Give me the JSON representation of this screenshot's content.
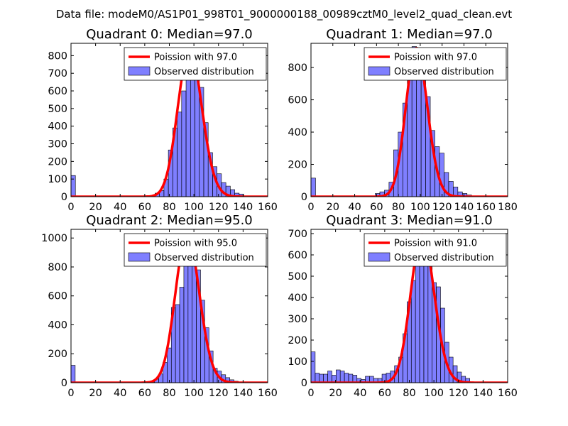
{
  "figure_title": "Data file: modeM0/AS1P01_998T01_9000000188_00989cztM0_level2_quad_clean.evt",
  "colors": {
    "bar_fill": "rgba(0,0,255,0.5)",
    "fit_line": "#ff0000"
  },
  "chart_data": [
    {
      "type": "bar",
      "title": "Quadrant 0: Median=97.0",
      "legend": {
        "fit": "Poission with 97.0",
        "observed": "Observed distribution"
      },
      "xlim": [
        0,
        160
      ],
      "ylim": [
        0,
        870
      ],
      "xticks": [
        0,
        20,
        40,
        60,
        80,
        100,
        120,
        140,
        160
      ],
      "yticks": [
        0,
        100,
        200,
        300,
        400,
        500,
        600,
        700,
        800
      ],
      "bin_width": 3.6,
      "bars": [
        [
          0,
          120
        ],
        [
          64.8,
          5
        ],
        [
          68.4,
          20
        ],
        [
          72,
          35
        ],
        [
          75.6,
          100
        ],
        [
          79.2,
          265
        ],
        [
          82.8,
          390
        ],
        [
          86.4,
          480
        ],
        [
          90,
          600
        ],
        [
          93.6,
          780
        ],
        [
          97.2,
          830
        ],
        [
          100.8,
          700
        ],
        [
          104.4,
          620
        ],
        [
          108,
          420
        ],
        [
          111.6,
          250
        ],
        [
          115.2,
          170
        ],
        [
          118.8,
          130
        ],
        [
          122.4,
          80
        ],
        [
          126,
          60
        ],
        [
          129.6,
          40
        ],
        [
          133.2,
          20
        ],
        [
          136.8,
          15
        ]
      ],
      "poisson_lambda": 97,
      "poisson_scale": 832
    },
    {
      "type": "bar",
      "title": "Quadrant 1: Median=97.0",
      "legend": {
        "fit": "Poission with 97.0",
        "observed": "Observed distribution"
      },
      "xlim": [
        0,
        180
      ],
      "ylim": [
        0,
        950
      ],
      "xticks": [
        0,
        20,
        40,
        60,
        80,
        100,
        120,
        140,
        160,
        180
      ],
      "yticks": [
        0,
        200,
        400,
        600,
        800
      ],
      "bin_width": 4.2,
      "bars": [
        [
          0,
          115
        ],
        [
          50.4,
          5
        ],
        [
          58.8,
          20
        ],
        [
          63,
          30
        ],
        [
          67.2,
          40
        ],
        [
          71.4,
          90
        ],
        [
          75.6,
          290
        ],
        [
          79.8,
          400
        ],
        [
          84,
          580
        ],
        [
          88.2,
          740
        ],
        [
          92.4,
          930
        ],
        [
          96.6,
          910
        ],
        [
          100.8,
          790
        ],
        [
          105,
          620
        ],
        [
          109.2,
          410
        ],
        [
          113.4,
          310
        ],
        [
          117.6,
          270
        ],
        [
          121.8,
          150
        ],
        [
          126,
          95
        ],
        [
          130.2,
          60
        ],
        [
          134.4,
          30
        ],
        [
          138.6,
          20
        ],
        [
          142.8,
          10
        ]
      ],
      "poisson_lambda": 97,
      "poisson_scale": 920
    },
    {
      "type": "bar",
      "title": "Quadrant 2: Median=95.0",
      "legend": {
        "fit": "Poission with 95.0",
        "observed": "Observed distribution"
      },
      "xlim": [
        0,
        160
      ],
      "ylim": [
        0,
        1060
      ],
      "xticks": [
        0,
        20,
        40,
        60,
        80,
        100,
        120,
        140,
        160
      ],
      "yticks": [
        0,
        200,
        400,
        600,
        800,
        1000
      ],
      "bin_width": 3.4,
      "bars": [
        [
          0,
          120
        ],
        [
          64.6,
          5
        ],
        [
          68,
          25
        ],
        [
          71.4,
          60
        ],
        [
          74.8,
          140
        ],
        [
          78.2,
          240
        ],
        [
          81.6,
          520
        ],
        [
          85,
          540
        ],
        [
          88.4,
          660
        ],
        [
          91.8,
          860
        ],
        [
          95.2,
          1000
        ],
        [
          98.6,
          900
        ],
        [
          102,
          780
        ],
        [
          105.4,
          570
        ],
        [
          108.8,
          380
        ],
        [
          112.2,
          220
        ],
        [
          115.6,
          100
        ],
        [
          119,
          80
        ],
        [
          122.4,
          55
        ],
        [
          125.8,
          35
        ],
        [
          129.2,
          20
        ],
        [
          132.6,
          10
        ],
        [
          136,
          5
        ]
      ],
      "poisson_lambda": 95,
      "poisson_scale": 1020
    },
    {
      "type": "bar",
      "title": "Quadrant 3: Median=91.0",
      "legend": {
        "fit": "Poission with 91.0",
        "observed": "Observed distribution"
      },
      "xlim": [
        0,
        160
      ],
      "ylim": [
        0,
        720
      ],
      "xticks": [
        0,
        20,
        40,
        60,
        80,
        100,
        120,
        140,
        160
      ],
      "yticks": [
        0,
        100,
        200,
        300,
        400,
        500,
        600,
        700
      ],
      "bin_width": 3.4,
      "bars": [
        [
          0,
          145
        ],
        [
          3.4,
          45
        ],
        [
          6.8,
          40
        ],
        [
          10.2,
          40
        ],
        [
          13.6,
          55
        ],
        [
          17,
          35
        ],
        [
          20.4,
          60
        ],
        [
          23.8,
          55
        ],
        [
          27.2,
          45
        ],
        [
          30.6,
          40
        ],
        [
          34,
          35
        ],
        [
          37.4,
          20
        ],
        [
          40.8,
          15
        ],
        [
          44.2,
          30
        ],
        [
          47.6,
          30
        ],
        [
          51,
          20
        ],
        [
          54.4,
          20
        ],
        [
          57.8,
          40
        ],
        [
          61.2,
          45
        ],
        [
          64.6,
          55
        ],
        [
          68,
          80
        ],
        [
          71.4,
          120
        ],
        [
          74.8,
          230
        ],
        [
          78.2,
          380
        ],
        [
          81.6,
          480
        ],
        [
          85,
          620
        ],
        [
          88.4,
          690
        ],
        [
          91.8,
          670
        ],
        [
          95.2,
          600
        ],
        [
          98.6,
          470
        ],
        [
          102,
          450
        ],
        [
          105.4,
          350
        ],
        [
          108.8,
          190
        ],
        [
          112.2,
          120
        ],
        [
          115.6,
          80
        ],
        [
          119,
          50
        ],
        [
          122.4,
          30
        ],
        [
          125.8,
          20
        ]
      ],
      "poisson_lambda": 91,
      "poisson_scale": 695
    }
  ]
}
